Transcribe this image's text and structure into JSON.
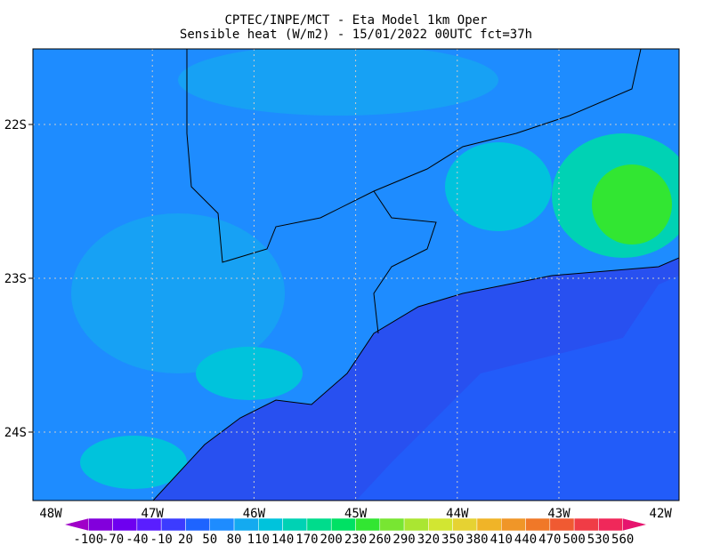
{
  "header": {
    "title": "CPTEC/INPE/MCT -  Eta Model 1km Oper",
    "subtitle": "Sensible heat (W/m2) - 15/01/2022 00UTC fct=37h"
  },
  "map": {
    "lat_labels": [
      "22S",
      "23S",
      "24S"
    ],
    "lon_labels": [
      "48W",
      "47W",
      "46W",
      "45W",
      "44W",
      "43W",
      "42W"
    ]
  },
  "colorbar": {
    "labels": [
      -100,
      -70,
      -40,
      -10,
      20,
      50,
      80,
      110,
      140,
      170,
      200,
      230,
      260,
      290,
      320,
      350,
      380,
      410,
      440,
      470,
      500,
      530,
      560
    ],
    "colors": [
      "#a000c8",
      "#8200dc",
      "#6e00f0",
      "#5a1eff",
      "#3c3cff",
      "#1e64ff",
      "#1e8cff",
      "#14aaf0",
      "#00c3dc",
      "#00d2b4",
      "#00dc8c",
      "#00e164",
      "#32e632",
      "#78e632",
      "#aae632",
      "#d2e632",
      "#e6d232",
      "#f0b428",
      "#f09628",
      "#f07828",
      "#f05a32",
      "#f03c46",
      "#f0285a",
      "#e6146e"
    ]
  }
}
